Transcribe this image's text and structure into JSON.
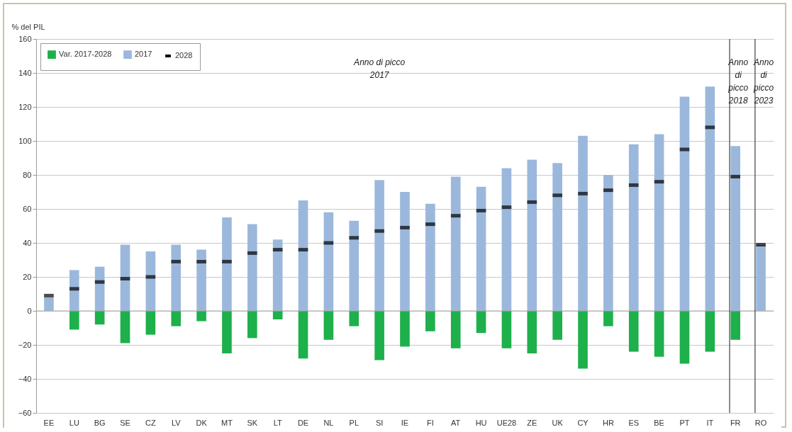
{
  "chart_data": {
    "type": "bar",
    "ylabel": "% del PIL",
    "categories": [
      "EE",
      "LU",
      "BG",
      "SE",
      "CZ",
      "LV",
      "DK",
      "MT",
      "SK",
      "LT",
      "DE",
      "NL",
      "PL",
      "SI",
      "IE",
      "FI",
      "AT",
      "HU",
      "UE28",
      "ZE",
      "UK",
      "CY",
      "HR",
      "ES",
      "BE",
      "PT",
      "IT",
      "FR",
      "RO"
    ],
    "series": [
      {
        "name": "Var. 2017-2028",
        "color": "#1db04b",
        "values": [
          null,
          -11,
          -8,
          -19,
          -14,
          -9,
          -6,
          -25,
          -16,
          -5,
          -28,
          -17,
          -9,
          -29,
          -21,
          -12,
          -22,
          -13,
          -22,
          -25,
          -17,
          -34,
          -9,
          -24,
          -27,
          -31,
          -24,
          -17,
          null
        ]
      },
      {
        "name": "2017",
        "color": "#9bb8dc",
        "values": [
          8,
          24,
          26,
          39,
          35,
          39,
          36,
          55,
          51,
          42,
          65,
          58,
          53,
          77,
          70,
          63,
          79,
          73,
          84,
          89,
          87,
          103,
          80,
          98,
          104,
          126,
          132,
          97,
          39
        ]
      },
      {
        "name": "2028",
        "type": "scatter",
        "color": "#000000",
        "values": [
          9,
          13,
          17,
          19,
          20,
          29,
          29,
          29,
          34,
          36,
          36,
          40,
          43,
          47,
          49,
          51,
          56,
          59,
          61,
          64,
          68,
          69,
          71,
          74,
          76,
          95,
          108,
          79,
          39
        ]
      }
    ],
    "ylim": [
      -60,
      160
    ],
    "yticks": [
      -60,
      -40,
      -20,
      0,
      20,
      40,
      60,
      80,
      100,
      120,
      140,
      160
    ],
    "grid": "y",
    "legend": "top left",
    "stacked": true,
    "ref_lines": [
      {
        "axis": "x",
        "value": "FR",
        "color": "#404040"
      },
      {
        "axis": "x",
        "value": "RO",
        "color": "#404040"
      }
    ],
    "annotations": [
      "Anno di picco 2017",
      "Anno di picco 2018",
      "Anno di picco 2023"
    ]
  }
}
